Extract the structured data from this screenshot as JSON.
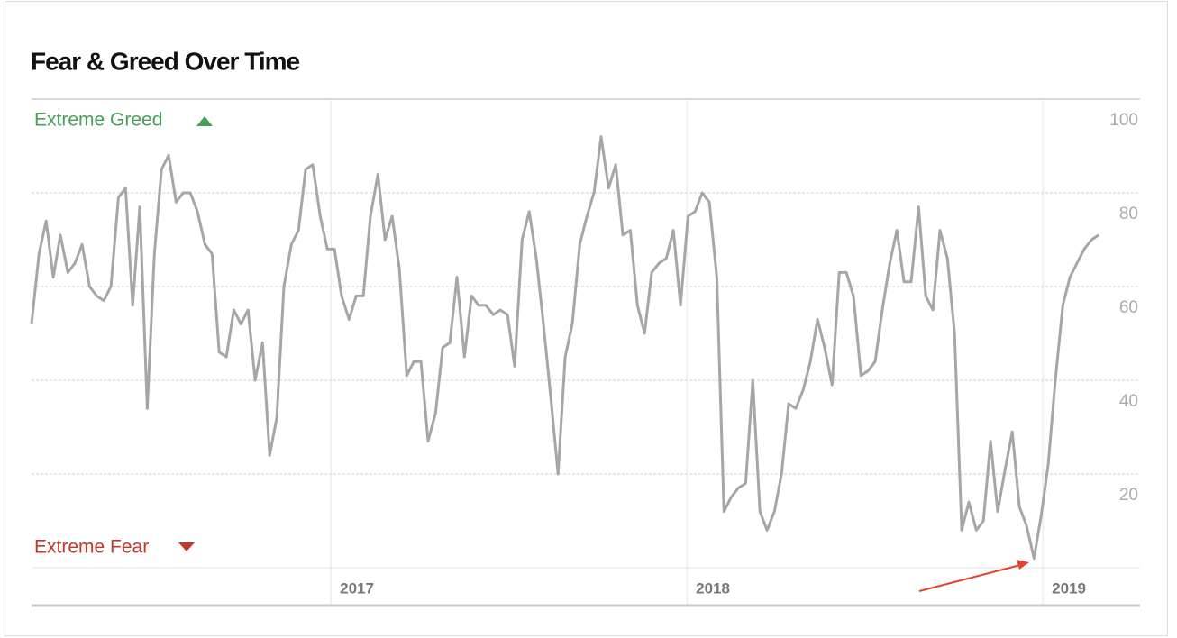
{
  "chart_data": {
    "type": "line",
    "title": "Fear & Greed Over Time",
    "annotations": [
      "Extreme Greed",
      "Extreme Fear"
    ],
    "x": [
      2016.159,
      2016.18,
      2016.2,
      2016.22,
      2016.24,
      2016.261,
      2016.281,
      2016.301,
      2016.322,
      2016.342,
      2016.362,
      2016.382,
      2016.403,
      2016.423,
      2016.443,
      2016.463,
      2016.484,
      2016.504,
      2016.524,
      2016.544,
      2016.565,
      2016.585,
      2016.605,
      2016.625,
      2016.646,
      2016.666,
      2016.686,
      2016.706,
      2016.727,
      2016.747,
      2016.767,
      2016.787,
      2016.808,
      2016.828,
      2016.848,
      2016.868,
      2016.889,
      2016.909,
      2016.929,
      2016.949,
      2016.97,
      2016.99,
      2017.01,
      2017.03,
      2017.051,
      2017.071,
      2017.091,
      2017.111,
      2017.132,
      2017.152,
      2017.172,
      2017.192,
      2017.213,
      2017.233,
      2017.253,
      2017.273,
      2017.294,
      2017.314,
      2017.334,
      2017.354,
      2017.375,
      2017.395,
      2017.415,
      2017.435,
      2017.456,
      2017.476,
      2017.496,
      2017.516,
      2017.537,
      2017.557,
      2017.577,
      2017.597,
      2017.618,
      2017.638,
      2017.658,
      2017.678,
      2017.699,
      2017.719,
      2017.739,
      2017.759,
      2017.78,
      2017.8,
      2017.82,
      2017.841,
      2017.861,
      2017.881,
      2017.901,
      2017.922,
      2017.942,
      2017.962,
      2017.982,
      2018.003,
      2018.023,
      2018.043,
      2018.063,
      2018.084,
      2018.104,
      2018.124,
      2018.144,
      2018.165,
      2018.185,
      2018.205,
      2018.225,
      2018.246,
      2018.266,
      2018.286,
      2018.306,
      2018.327,
      2018.347,
      2018.367,
      2018.387,
      2018.408,
      2018.428,
      2018.448,
      2018.468,
      2018.489,
      2018.509,
      2018.529,
      2018.549,
      2018.57,
      2018.59,
      2018.61,
      2018.63,
      2018.651,
      2018.671,
      2018.691,
      2018.711,
      2018.732,
      2018.752,
      2018.772,
      2018.792,
      2018.813,
      2018.833,
      2018.853,
      2018.873,
      2018.894,
      2018.914,
      2018.934,
      2018.954,
      2018.975,
      2018.995,
      2019.015,
      2019.035,
      2019.056,
      2019.076,
      2019.096,
      2019.116,
      2019.137,
      2019.157
    ],
    "series": [
      {
        "color": "#a6a6a6",
        "values": [
          52,
          67,
          74,
          62,
          71,
          63,
          65,
          69,
          60,
          58,
          57,
          60,
          79,
          81,
          56,
          77,
          34,
          67,
          85,
          88,
          78,
          80,
          80,
          76,
          69,
          67,
          46,
          45,
          55,
          52,
          55,
          40,
          48,
          24,
          32,
          60,
          69,
          72,
          85,
          86,
          75,
          68,
          68,
          58,
          53,
          58,
          58,
          75,
          84,
          70,
          75,
          64,
          41,
          44,
          44,
          27,
          33,
          47,
          48,
          62,
          45,
          58,
          56,
          56,
          54,
          55,
          54,
          43,
          70,
          76,
          66,
          52,
          36,
          20,
          45,
          52,
          69,
          75,
          80,
          92,
          81,
          86,
          71,
          72,
          56,
          50,
          63,
          65,
          66,
          72,
          56,
          75,
          76,
          80,
          78,
          62,
          12,
          15,
          17,
          18,
          40,
          12,
          8,
          12,
          20,
          35,
          34,
          38,
          44,
          53,
          47,
          39,
          63,
          63,
          58,
          41,
          42,
          44,
          55,
          65,
          72,
          61,
          61,
          77,
          58,
          55,
          72,
          66,
          50,
          8,
          14,
          8,
          10,
          27,
          12,
          21,
          29,
          13,
          9,
          2,
          11,
          22,
          40,
          56,
          62,
          65,
          68,
          70,
          71
        ]
      }
    ],
    "xlim": [
      2016.159,
      2019.273
    ],
    "ylim": [
      0,
      100
    ],
    "xticks": [
      2017,
      2018,
      2019
    ],
    "yticks": [
      20,
      40,
      60,
      80,
      100
    ],
    "grid": true
  }
}
